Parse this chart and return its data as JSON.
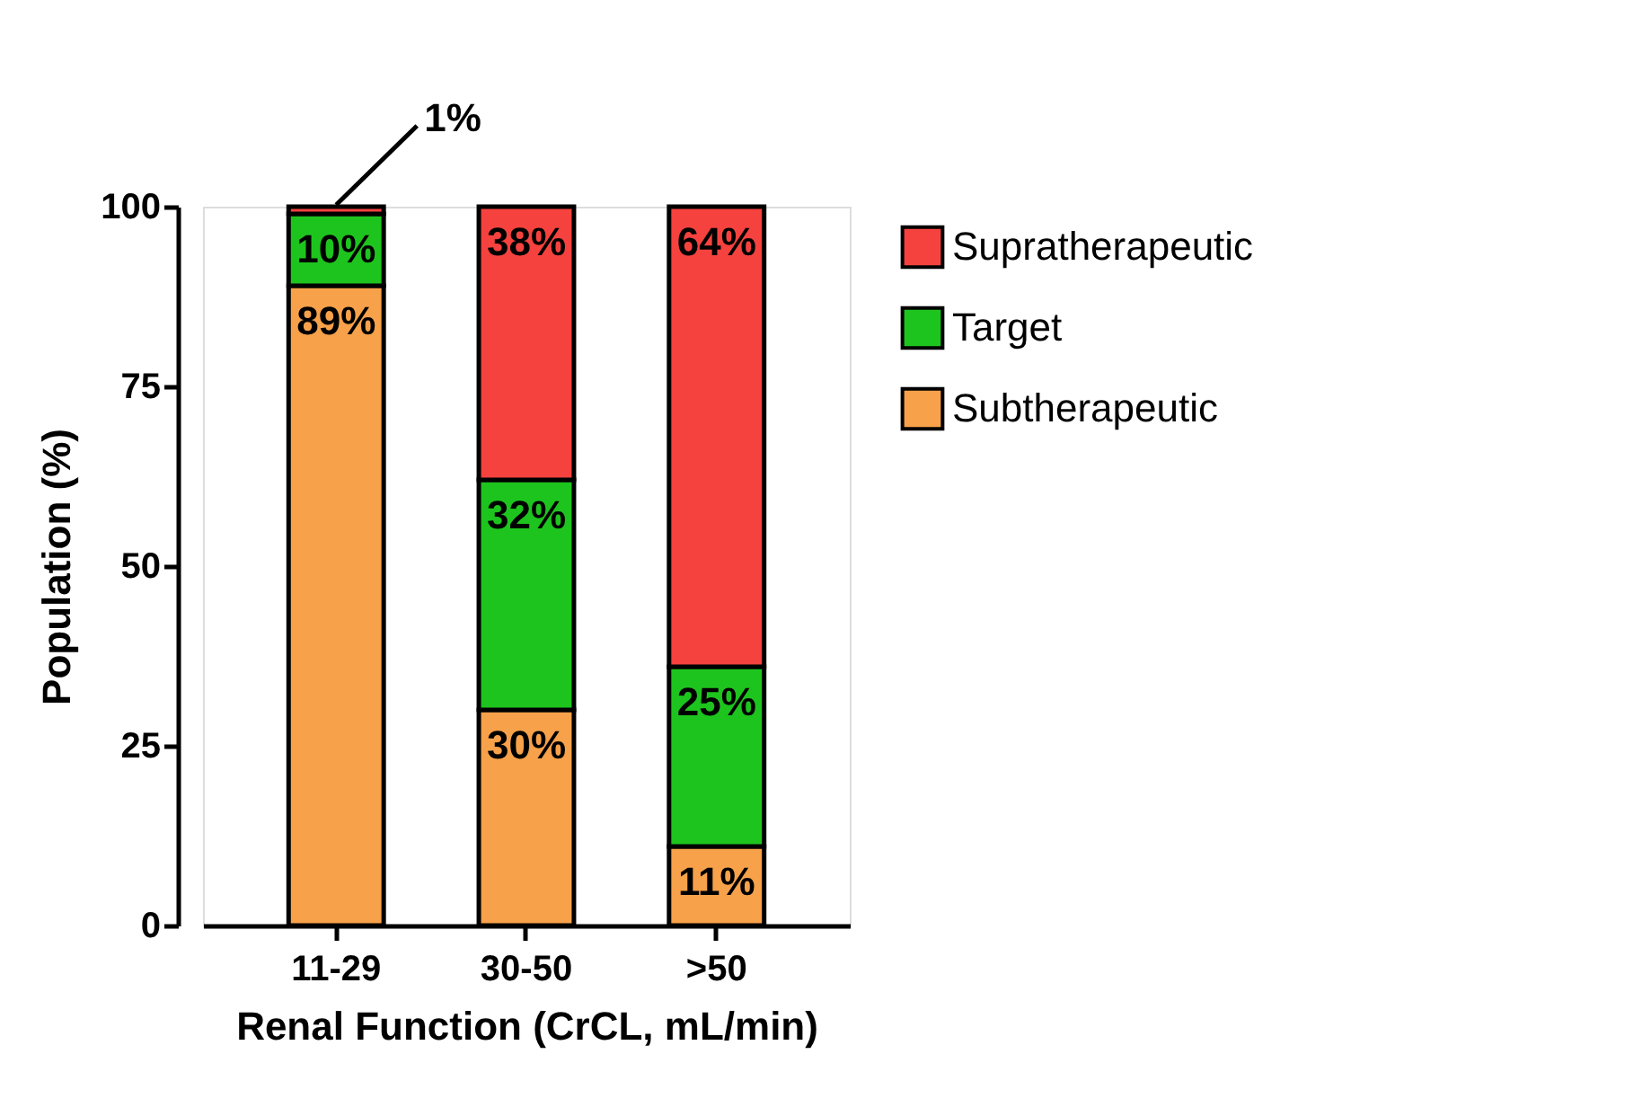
{
  "chart_data": {
    "type": "bar",
    "stacked": true,
    "xlabel": "Renal  Function (CrCL, mL/min)",
    "ylabel": "Population (%)",
    "categories": [
      "11-29",
      "30-50",
      ">50"
    ],
    "series": [
      {
        "name": "Subtherapeutic",
        "color": "#f7a14a",
        "values": [
          89,
          30,
          11
        ],
        "value_labels": [
          "89%",
          "30%",
          "11%"
        ]
      },
      {
        "name": "Target",
        "color": "#1ec41e",
        "values": [
          10,
          32,
          25
        ],
        "value_labels": [
          "10%",
          "32%",
          "25%"
        ]
      },
      {
        "name": "Supratherapeutic",
        "color": "#f5423e",
        "values": [
          1,
          38,
          64
        ],
        "value_labels": [
          "1%",
          "38%",
          "64%"
        ]
      }
    ],
    "ylim": [
      0,
      100
    ],
    "yticks": [
      0,
      25,
      50,
      75,
      100
    ],
    "grid": false,
    "legend": "right"
  }
}
